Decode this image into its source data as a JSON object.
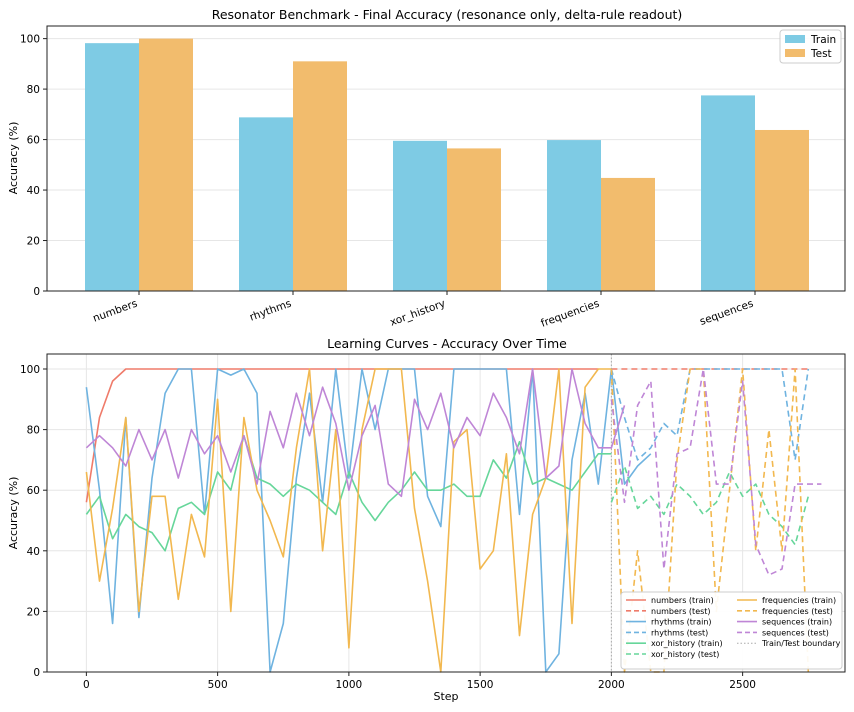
{
  "chart_data": [
    {
      "type": "bar",
      "title": "Resonator Benchmark - Final Accuracy (resonance only, delta-rule readout)",
      "xlabel": "",
      "ylabel": "Accuracy (%)",
      "ylim": [
        0,
        105
      ],
      "yticks": [
        0,
        20,
        40,
        60,
        80,
        100
      ],
      "grid": true,
      "legend_position": "top-right",
      "categories": [
        "numbers",
        "rhythms",
        "xor_history",
        "frequencies",
        "sequences"
      ],
      "series": [
        {
          "name": "Train",
          "color": "#7ecbe4",
          "values": [
            98.2,
            68.8,
            59.5,
            59.8,
            77.5
          ]
        },
        {
          "name": "Test",
          "color": "#f2bc6d",
          "values": [
            100,
            91,
            56.5,
            44.8,
            63.8
          ]
        }
      ]
    },
    {
      "type": "line",
      "title": "Learning Curves - Accuracy Over Time",
      "xlabel": "Step",
      "ylabel": "Accuracy (%)",
      "xlim": [
        -150,
        2890
      ],
      "ylim": [
        0,
        105
      ],
      "xticks": [
        0,
        500,
        1000,
        1500,
        2000,
        2500
      ],
      "yticks": [
        0,
        20,
        40,
        60,
        80,
        100
      ],
      "grid": true,
      "legend_position": "bottom-right",
      "boundary": {
        "x": 2000,
        "label": "Train/Test boundary",
        "color": "#aaaaaa"
      },
      "series": [
        {
          "name": "numbers (train)",
          "color": "#ef7b6a",
          "dash": false,
          "x0": 0,
          "dx": 50,
          "values": [
            56,
            84,
            96,
            100,
            100,
            100,
            100,
            100,
            100,
            100,
            100,
            100,
            100,
            100,
            100,
            100,
            100,
            100,
            100,
            100,
            100,
            100,
            100,
            100,
            100,
            100,
            100,
            100,
            100,
            100,
            100,
            100,
            100,
            100,
            100,
            100,
            100,
            100,
            100,
            100
          ]
        },
        {
          "name": "numbers (test)",
          "color": "#ef7b6a",
          "dash": true,
          "x0": 2000,
          "dx": 50,
          "values": [
            100,
            100,
            100,
            100,
            100,
            100,
            100,
            100,
            100,
            100,
            100,
            100,
            100,
            100,
            100,
            100
          ]
        },
        {
          "name": "rhythms (train)",
          "color": "#6fb3e0",
          "dash": false,
          "x0": 0,
          "dx": 50,
          "values": [
            94,
            60,
            16,
            84,
            18,
            64,
            92,
            100,
            100,
            52,
            100,
            98,
            100,
            92,
            0,
            16,
            64,
            92,
            56,
            100,
            64,
            100,
            80,
            100,
            100,
            100,
            58,
            48,
            100,
            100,
            100,
            100,
            100,
            52,
            100,
            0,
            6,
            70,
            92,
            62,
            100,
            62,
            68,
            72
          ]
        },
        {
          "name": "rhythms (test)",
          "color": "#6fb3e0",
          "dash": true,
          "x0": 2000,
          "dx": 50,
          "values": [
            100,
            84,
            70,
            74,
            82,
            78,
            100,
            100,
            100,
            100,
            100,
            100,
            100,
            100,
            70,
            100
          ]
        },
        {
          "name": "xor_history (train)",
          "color": "#66d69a",
          "dash": false,
          "x0": 0,
          "dx": 50,
          "values": [
            52,
            58,
            44,
            52,
            48,
            46,
            40,
            54,
            56,
            52,
            66,
            60,
            78,
            64,
            62,
            58,
            62,
            60,
            56,
            52,
            66,
            56,
            50,
            56,
            60,
            66,
            60,
            60,
            62,
            58,
            58,
            70,
            64,
            76,
            62,
            64,
            62,
            60,
            66,
            72,
            72
          ]
        },
        {
          "name": "xor_history (test)",
          "color": "#66d69a",
          "dash": true,
          "x0": 2000,
          "dx": 50,
          "values": [
            56,
            68,
            54,
            58,
            52,
            62,
            58,
            52,
            56,
            66,
            58,
            62,
            52,
            48,
            42,
            58
          ]
        },
        {
          "name": "frequencies (train)",
          "color": "#f2b84f",
          "dash": false,
          "x0": 0,
          "dx": 50,
          "values": [
            66,
            30,
            54,
            84,
            20,
            58,
            58,
            24,
            52,
            38,
            90,
            20,
            84,
            60,
            50,
            38,
            74,
            100,
            40,
            80,
            8,
            80,
            100,
            100,
            100,
            54,
            30,
            0,
            76,
            80,
            34,
            40,
            72,
            12,
            52,
            64,
            100,
            16,
            94,
            100,
            100
          ]
        },
        {
          "name": "frequencies (test)",
          "color": "#f2b84f",
          "dash": true,
          "x0": 2000,
          "dx": 50,
          "values": [
            100,
            0,
            40,
            0,
            0,
            70,
            100,
            100,
            20,
            60,
            100,
            40,
            80,
            40,
            100,
            0
          ]
        },
        {
          "name": "sequences (train)",
          "color": "#bf86d6",
          "dash": false,
          "x0": 0,
          "dx": 50,
          "values": [
            74,
            78,
            74,
            68,
            80,
            70,
            80,
            64,
            80,
            72,
            78,
            66,
            78,
            62,
            86,
            74,
            92,
            78,
            94,
            82,
            60,
            78,
            88,
            62,
            58,
            90,
            80,
            92,
            74,
            84,
            78,
            92,
            84,
            72,
            100,
            64,
            68,
            100,
            82,
            74,
            74,
            88
          ]
        },
        {
          "name": "sequences (test)",
          "color": "#bf86d6",
          "dash": true,
          "x0": 2000,
          "dx": 50,
          "values": [
            90,
            56,
            88,
            96,
            34,
            72,
            74,
            100,
            62,
            62,
            96,
            42,
            32,
            34,
            62,
            62,
            62
          ]
        }
      ]
    }
  ]
}
